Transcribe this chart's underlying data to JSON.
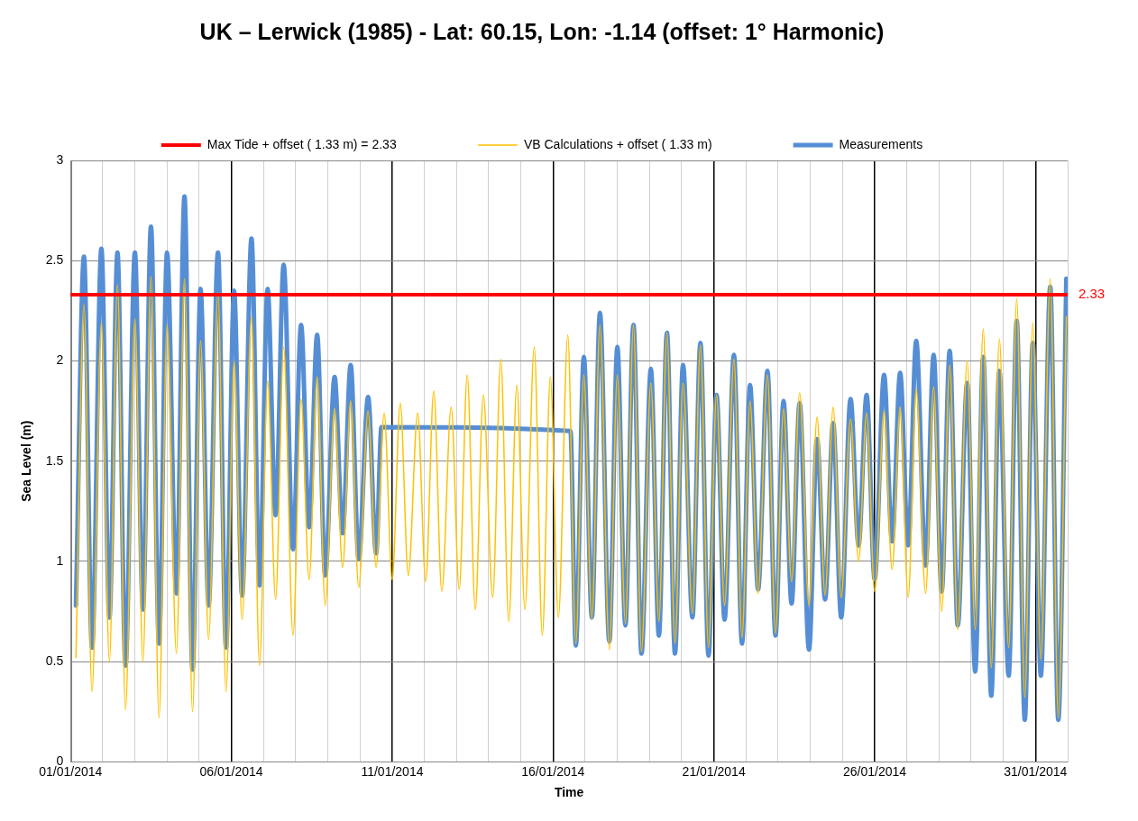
{
  "chart_data": {
    "type": "line",
    "title": "UK – Lerwick (1985) - Lat: 60.15, Lon: -1.14 (offset: 1° Harmonic)",
    "xlabel": "Time",
    "ylabel": "Sea Level (m)",
    "xlim": [
      "2014-01-01",
      "2014-02-01"
    ],
    "xticks": [
      {
        "value": "2014-01-01",
        "label": "01/01/2014"
      },
      {
        "value": "2014-01-02",
        "label": null
      },
      {
        "value": "2014-01-03",
        "label": null
      },
      {
        "value": "2014-01-04",
        "label": null
      },
      {
        "value": "2014-01-05",
        "label": null
      },
      {
        "value": "2014-01-06",
        "label": "06/01/2014"
      },
      {
        "value": "2014-01-07",
        "label": null
      },
      {
        "value": "2014-01-08",
        "label": null
      },
      {
        "value": "2014-01-09",
        "label": null
      },
      {
        "value": "2014-01-10",
        "label": null
      },
      {
        "value": "2014-01-11",
        "label": "11/01/2014"
      },
      {
        "value": "2014-01-12",
        "label": null
      },
      {
        "value": "2014-01-13",
        "label": null
      },
      {
        "value": "2014-01-14",
        "label": null
      },
      {
        "value": "2014-01-15",
        "label": null
      },
      {
        "value": "2014-01-16",
        "label": "16/01/2014"
      },
      {
        "value": "2014-01-17",
        "label": null
      },
      {
        "value": "2014-01-18",
        "label": null
      },
      {
        "value": "2014-01-19",
        "label": null
      },
      {
        "value": "2014-01-20",
        "label": null
      },
      {
        "value": "2014-01-21",
        "label": "21/01/2014"
      },
      {
        "value": "2014-01-22",
        "label": null
      },
      {
        "value": "2014-01-23",
        "label": null
      },
      {
        "value": "2014-01-24",
        "label": null
      },
      {
        "value": "2014-01-25",
        "label": null
      },
      {
        "value": "2014-01-26",
        "label": "26/01/2014"
      },
      {
        "value": "2014-01-27",
        "label": null
      },
      {
        "value": "2014-01-28",
        "label": null
      },
      {
        "value": "2014-01-29",
        "label": null
      },
      {
        "value": "2014-01-30",
        "label": null
      },
      {
        "value": "2014-01-31",
        "label": "31/01/2014"
      },
      {
        "value": "2014-02-01",
        "label": null
      }
    ],
    "ylim": [
      0,
      3
    ],
    "yticks": [
      0,
      0.5,
      1,
      1.5,
      2,
      2.5,
      3
    ],
    "grid": true,
    "legend": "top",
    "marker": "none",
    "line_style": "solid",
    "series": [
      {
        "name": "Measurements",
        "color": "#558ed5",
        "x": [
          "2014-01-01T04:00",
          "2014-01-01T10:00",
          "2014-01-01T16:00",
          "2014-01-01T23:00",
          "2014-01-02T05:00",
          "2014-01-02T11:00",
          "2014-01-02T17:00",
          "2014-01-03T00:00",
          "2014-01-03T06:00",
          "2014-01-03T12:00",
          "2014-01-03T18:00",
          "2014-01-04T00:00",
          "2014-01-04T07:00",
          "2014-01-04T13:00",
          "2014-01-04T19:00",
          "2014-01-05T01:00",
          "2014-01-05T07:00",
          "2014-01-05T14:00",
          "2014-01-05T20:00",
          "2014-01-06T02:00",
          "2014-01-06T08:00",
          "2014-01-06T15:00",
          "2014-01-06T21:00",
          "2014-01-07T03:00",
          "2014-01-07T09:00",
          "2014-01-07T15:00",
          "2014-01-07T22:00",
          "2014-01-08T04:00",
          "2014-01-08T10:00",
          "2014-01-08T16:00",
          "2014-01-08T22:00",
          "2014-01-09T05:00",
          "2014-01-09T11:00",
          "2014-01-09T17:00",
          "2014-01-09T23:00",
          "2014-01-10T06:00",
          "2014-01-10T12:00",
          "2014-01-10T16:00",
          "2014-01-16T13:00",
          "2014-01-16T17:00",
          "2014-01-16T23:00",
          "2014-01-17T05:00",
          "2014-01-17T11:00",
          "2014-01-17T18:00",
          "2014-01-18T00:00",
          "2014-01-18T06:00",
          "2014-01-18T12:00",
          "2014-01-18T18:00",
          "2014-01-19T01:00",
          "2014-01-19T07:00",
          "2014-01-19T13:00",
          "2014-01-19T19:00",
          "2014-01-20T01:00",
          "2014-01-20T08:00",
          "2014-01-20T14:00",
          "2014-01-20T20:00",
          "2014-01-21T02:00",
          "2014-01-21T08:00",
          "2014-01-21T15:00",
          "2014-01-21T21:00",
          "2014-01-22T03:00",
          "2014-01-22T09:00",
          "2014-01-22T16:00",
          "2014-01-22T22:00",
          "2014-01-23T04:00",
          "2014-01-23T10:00",
          "2014-01-23T16:00",
          "2014-01-23T23:00",
          "2014-01-24T05:00",
          "2014-01-24T11:00",
          "2014-01-24T17:00",
          "2014-01-24T23:00",
          "2014-01-25T06:00",
          "2014-01-25T12:00",
          "2014-01-25T18:00",
          "2014-01-26T00:00",
          "2014-01-26T07:00",
          "2014-01-26T13:00",
          "2014-01-26T19:00",
          "2014-01-27T01:00",
          "2014-01-27T07:00",
          "2014-01-27T14:00",
          "2014-01-27T20:00",
          "2014-01-28T02:00",
          "2014-01-28T08:00",
          "2014-01-28T14:00",
          "2014-01-28T21:00",
          "2014-01-29T03:00",
          "2014-01-29T09:00",
          "2014-01-29T15:00",
          "2014-01-29T21:00",
          "2014-01-30T04:00",
          "2014-01-30T10:00",
          "2014-01-30T16:00",
          "2014-01-30T22:00",
          "2014-01-31T04:00",
          "2014-01-31T11:00",
          "2014-01-31T17:00",
          "2014-01-31T23:00"
        ],
        "values": [
          0.78,
          2.52,
          0.57,
          2.56,
          0.72,
          2.54,
          0.48,
          2.54,
          0.76,
          2.67,
          0.59,
          2.54,
          0.84,
          2.82,
          0.46,
          2.36,
          0.78,
          2.54,
          0.57,
          2.35,
          0.83,
          2.61,
          0.88,
          2.36,
          1.23,
          2.48,
          1.06,
          2.18,
          1.17,
          2.13,
          0.93,
          1.92,
          1.14,
          1.98,
          1.01,
          1.82,
          1.04,
          1.67,
          1.65,
          0.58,
          2.02,
          0.72,
          2.24,
          0.6,
          2.07,
          0.68,
          2.18,
          0.54,
          1.96,
          0.63,
          2.14,
          0.54,
          1.98,
          0.72,
          2.09,
          0.53,
          1.83,
          0.71,
          2.03,
          0.59,
          1.88,
          0.86,
          1.95,
          0.63,
          1.8,
          0.79,
          1.79,
          0.56,
          1.61,
          0.81,
          1.69,
          0.72,
          1.81,
          1.08,
          1.83,
          0.91,
          1.93,
          1.1,
          1.94,
          1.08,
          2.1,
          0.98,
          2.03,
          0.85,
          2.05,
          0.68,
          1.89,
          0.45,
          2.02,
          0.33,
          1.95,
          0.43,
          2.2,
          0.21,
          2.09,
          0.43,
          2.37,
          0.21,
          2.41
        ]
      },
      {
        "name": "VB Calculations + offset ( 1.33 m)",
        "color": "#ffc000",
        "x": [
          "2014-01-01T04:00",
          "2014-01-01T10:00",
          "2014-01-01T16:00",
          "2014-01-01T23:00",
          "2014-01-02T05:00",
          "2014-01-02T11:00",
          "2014-01-02T17:00",
          "2014-01-03T00:00",
          "2014-01-03T06:00",
          "2014-01-03T12:00",
          "2014-01-03T18:00",
          "2014-01-04T00:00",
          "2014-01-04T07:00",
          "2014-01-04T13:00",
          "2014-01-04T19:00",
          "2014-01-05T01:00",
          "2014-01-05T07:00",
          "2014-01-05T14:00",
          "2014-01-05T20:00",
          "2014-01-06T02:00",
          "2014-01-06T08:00",
          "2014-01-06T15:00",
          "2014-01-06T21:00",
          "2014-01-07T03:00",
          "2014-01-07T09:00",
          "2014-01-07T15:00",
          "2014-01-07T22:00",
          "2014-01-08T04:00",
          "2014-01-08T10:00",
          "2014-01-08T16:00",
          "2014-01-08T22:00",
          "2014-01-09T05:00",
          "2014-01-09T11:00",
          "2014-01-09T17:00",
          "2014-01-09T23:00",
          "2014-01-10T06:00",
          "2014-01-10T12:00",
          "2014-01-10T18:00",
          "2014-01-11T00:00",
          "2014-01-11T06:00",
          "2014-01-11T12:00",
          "2014-01-11T19:00",
          "2014-01-12T01:00",
          "2014-01-12T07:00",
          "2014-01-12T13:00",
          "2014-01-12T20:00",
          "2014-01-13T02:00",
          "2014-01-13T08:00",
          "2014-01-13T14:00",
          "2014-01-13T20:00",
          "2014-01-14T03:00",
          "2014-01-14T09:00",
          "2014-01-14T15:00",
          "2014-01-14T21:00",
          "2014-01-15T03:00",
          "2014-01-15T10:00",
          "2014-01-15T16:00",
          "2014-01-15T22:00",
          "2014-01-16T04:00",
          "2014-01-16T11:00",
          "2014-01-16T17:00",
          "2014-01-16T23:00",
          "2014-01-17T05:00",
          "2014-01-17T11:00",
          "2014-01-17T18:00",
          "2014-01-18T00:00",
          "2014-01-18T06:00",
          "2014-01-18T12:00",
          "2014-01-18T18:00",
          "2014-01-19T01:00",
          "2014-01-19T07:00",
          "2014-01-19T13:00",
          "2014-01-19T19:00",
          "2014-01-20T01:00",
          "2014-01-20T08:00",
          "2014-01-20T14:00",
          "2014-01-20T20:00",
          "2014-01-21T02:00",
          "2014-01-21T08:00",
          "2014-01-21T15:00",
          "2014-01-21T21:00",
          "2014-01-22T03:00",
          "2014-01-22T09:00",
          "2014-01-22T16:00",
          "2014-01-22T22:00",
          "2014-01-23T04:00",
          "2014-01-23T10:00",
          "2014-01-23T16:00",
          "2014-01-23T23:00",
          "2014-01-24T05:00",
          "2014-01-24T11:00",
          "2014-01-24T17:00",
          "2014-01-24T23:00",
          "2014-01-25T06:00",
          "2014-01-25T12:00",
          "2014-01-25T18:00",
          "2014-01-26T00:00",
          "2014-01-26T07:00",
          "2014-01-26T13:00",
          "2014-01-26T19:00",
          "2014-01-27T01:00",
          "2014-01-27T07:00",
          "2014-01-27T14:00",
          "2014-01-27T20:00",
          "2014-01-28T02:00",
          "2014-01-28T08:00",
          "2014-01-28T14:00",
          "2014-01-28T21:00",
          "2014-01-29T03:00",
          "2014-01-29T09:00",
          "2014-01-29T15:00",
          "2014-01-29T21:00",
          "2014-01-30T04:00",
          "2014-01-30T10:00",
          "2014-01-30T16:00",
          "2014-01-30T22:00",
          "2014-01-31T04:00",
          "2014-01-31T11:00",
          "2014-01-31T17:00",
          "2014-01-31T23:00"
        ],
        "values": [
          0.52,
          2.28,
          0.35,
          2.19,
          0.5,
          2.38,
          0.26,
          2.21,
          0.5,
          2.42,
          0.22,
          2.18,
          0.54,
          2.41,
          0.25,
          2.1,
          0.61,
          2.34,
          0.35,
          2.0,
          0.71,
          2.22,
          0.48,
          1.9,
          0.81,
          2.07,
          0.63,
          1.81,
          0.91,
          1.92,
          0.78,
          1.76,
          0.97,
          1.8,
          0.87,
          1.75,
          0.97,
          1.74,
          0.91,
          1.79,
          0.93,
          1.74,
          0.9,
          1.85,
          0.85,
          1.77,
          0.86,
          1.93,
          0.76,
          1.83,
          0.82,
          2.01,
          0.7,
          1.88,
          0.76,
          2.07,
          0.63,
          1.92,
          0.72,
          2.13,
          0.59,
          1.93,
          0.71,
          2.18,
          0.56,
          1.93,
          0.69,
          2.18,
          0.55,
          1.89,
          0.7,
          2.14,
          0.59,
          1.89,
          0.74,
          2.08,
          0.57,
          1.83,
          0.78,
          2.01,
          0.62,
          1.8,
          0.84,
          1.93,
          0.64,
          1.76,
          0.9,
          1.84,
          0.78,
          1.72,
          0.83,
          1.77,
          0.82,
          1.71,
          1.0,
          1.74,
          0.85,
          1.75,
          0.96,
          1.77,
          0.82,
          1.86,
          0.84,
          1.87,
          0.75,
          1.98,
          0.66,
          2.0,
          0.66,
          2.16,
          0.47,
          2.11,
          0.57,
          2.31,
          0.32,
          2.19,
          0.51,
          2.41,
          0.22,
          2.22
        ]
      },
      {
        "name": "Max Tide + offset ( 1.33 m) = 2.33",
        "color": "#ff0000",
        "x": [
          "2014-01-01",
          "2014-02-01"
        ],
        "values": [
          2.33,
          2.33
        ]
      }
    ],
    "annotations": [
      {
        "text": "2.33",
        "x": "2014-02-01",
        "y": 2.33
      }
    ]
  }
}
